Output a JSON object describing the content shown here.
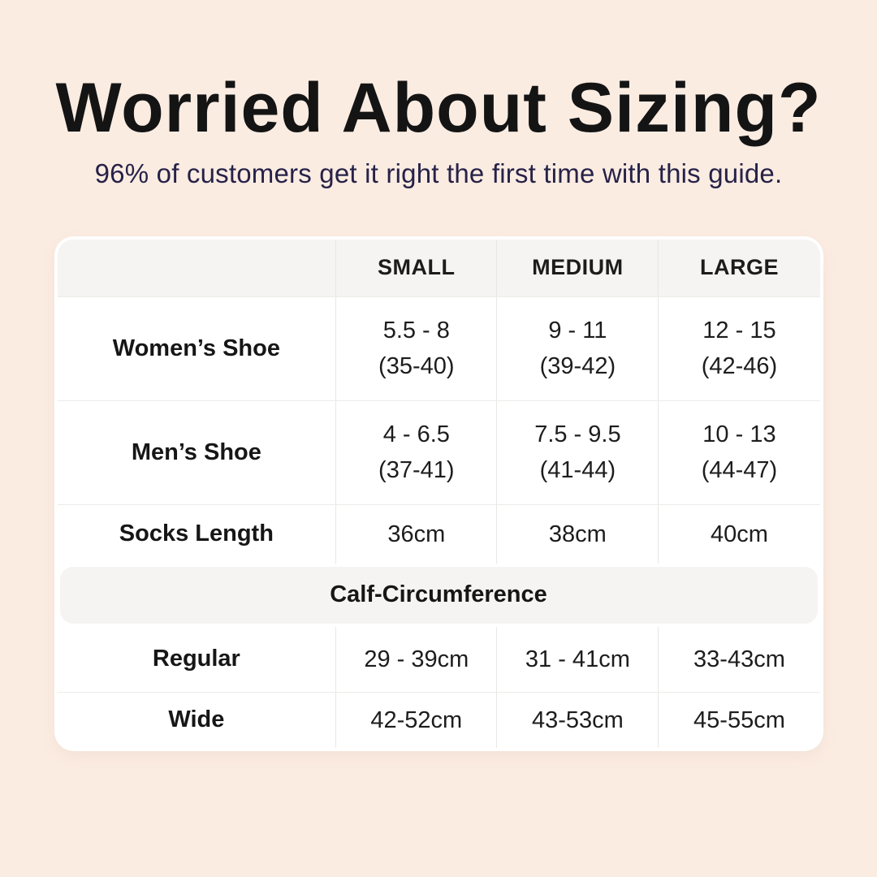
{
  "header": {
    "title": "Worried About Sizing?",
    "subtitle": "96% of customers get it right the first time with this guide."
  },
  "colors": {
    "page_background": "#fbece2",
    "title_text": "#141414",
    "subtitle_text": "#262248",
    "table_background": "#ffffff",
    "band_background": "#f5f4f2",
    "divider": "#edebe8",
    "table_text": "#1d1d1d"
  },
  "table": {
    "columns": [
      "SMALL",
      "MEDIUM",
      "LARGE"
    ],
    "rows": [
      {
        "label": "Women’s Shoe",
        "cells": [
          {
            "main": "5.5 - 8",
            "sub": "(35-40)"
          },
          {
            "main": "9 - 11",
            "sub": "(39-42)"
          },
          {
            "main": "12 - 15",
            "sub": "(42-46)"
          }
        ]
      },
      {
        "label": "Men’s Shoe",
        "cells": [
          {
            "main": "4 - 6.5",
            "sub": "(37-41)"
          },
          {
            "main": "7.5 - 9.5",
            "sub": "(41-44)"
          },
          {
            "main": "10 - 13",
            "sub": "(44-47)"
          }
        ]
      },
      {
        "label": "Socks Length",
        "cells": [
          {
            "main": "36cm"
          },
          {
            "main": "38cm"
          },
          {
            "main": "40cm"
          }
        ]
      }
    ],
    "section": {
      "title": "Calf-Circumference",
      "rows": [
        {
          "label": "Regular",
          "cells": [
            {
              "main": "29 - 39cm"
            },
            {
              "main": "31 - 41cm"
            },
            {
              "main": "33-43cm"
            }
          ]
        },
        {
          "label": "Wide",
          "cells": [
            {
              "main": "42-52cm"
            },
            {
              "main": "43-53cm"
            },
            {
              "main": "45-55cm"
            }
          ]
        }
      ]
    }
  },
  "chart_data": {
    "type": "table",
    "title": "Worried About Sizing?",
    "subtitle": "96% of customers get it right the first time with this guide.",
    "columns": [
      "",
      "SMALL",
      "MEDIUM",
      "LARGE"
    ],
    "rows": [
      [
        "Women’s Shoe",
        "5.5 - 8 (35-40)",
        "9 - 11 (39-42)",
        "12 - 15 (42-46)"
      ],
      [
        "Men’s Shoe",
        "4 - 6.5 (37-41)",
        "7.5 - 9.5 (41-44)",
        "10 - 13 (44-47)"
      ],
      [
        "Socks Length",
        "36cm",
        "38cm",
        "40cm"
      ],
      [
        "Calf-Circumference",
        "",
        "",
        ""
      ],
      [
        "Regular",
        "29 - 39cm",
        "31 - 41cm",
        "33-43cm"
      ],
      [
        "Wide",
        "42-52cm",
        "43-53cm",
        "45-55cm"
      ]
    ]
  }
}
